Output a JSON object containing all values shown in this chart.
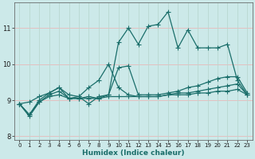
{
  "xlabel": "Humidex (Indice chaleur)",
  "xlim": [
    -0.5,
    23.5
  ],
  "ylim": [
    7.9,
    11.7
  ],
  "yticks": [
    8,
    9,
    10,
    11
  ],
  "xticks": [
    0,
    1,
    2,
    3,
    4,
    5,
    6,
    7,
    8,
    9,
    10,
    11,
    12,
    13,
    14,
    15,
    16,
    17,
    18,
    19,
    20,
    21,
    22,
    23
  ],
  "bg_color": "#cce9e9",
  "grid_color": "#b8d8d8",
  "line_color": "#1a6e6a",
  "line_width": 0.9,
  "marker": "+",
  "marker_size": 4,
  "series": [
    [
      8.9,
      8.55,
      8.95,
      9.15,
      9.25,
      9.05,
      9.05,
      9.1,
      9.05,
      9.15,
      10.6,
      11.0,
      10.55,
      11.05,
      11.1,
      11.45,
      10.45,
      10.95,
      10.45,
      10.45,
      10.45,
      10.55,
      9.55,
      9.15
    ],
    [
      8.9,
      8.95,
      9.1,
      9.2,
      9.35,
      9.15,
      9.1,
      8.9,
      9.1,
      9.15,
      9.9,
      9.95,
      9.15,
      9.15,
      9.15,
      9.2,
      9.25,
      9.35,
      9.4,
      9.5,
      9.6,
      9.65,
      9.65,
      9.2
    ],
    [
      8.9,
      8.6,
      9.0,
      9.2,
      9.35,
      9.05,
      9.1,
      9.35,
      9.55,
      10.0,
      9.35,
      9.15,
      9.1,
      9.1,
      9.1,
      9.15,
      9.2,
      9.2,
      9.25,
      9.3,
      9.35,
      9.4,
      9.45,
      9.15
    ],
    [
      8.9,
      8.6,
      8.95,
      9.1,
      9.15,
      9.05,
      9.05,
      9.05,
      9.05,
      9.1,
      9.1,
      9.1,
      9.1,
      9.1,
      9.1,
      9.15,
      9.15,
      9.15,
      9.2,
      9.2,
      9.25,
      9.25,
      9.3,
      9.15
    ]
  ]
}
